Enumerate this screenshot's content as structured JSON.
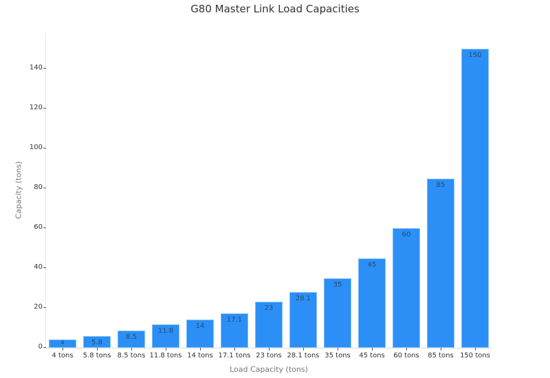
{
  "chart_data": {
    "type": "bar",
    "title": "G80 Master Link Load Capacities",
    "xlabel": "Load Capacity (tons)",
    "ylabel": "Capacity (tons)",
    "categories": [
      "4 tons",
      "5.8 tons",
      "8.5 tons",
      "11.8 tons",
      "14 tons",
      "17.1 tons",
      "23 tons",
      "28.1 tons",
      "35 tons",
      "45 tons",
      "60 tons",
      "85 tons",
      "150 tons"
    ],
    "values": [
      4,
      5.8,
      8.5,
      11.8,
      14,
      17.1,
      23,
      28.1,
      35,
      45,
      60,
      85,
      150
    ],
    "data_labels": [
      "4",
      "5.8",
      "8.5",
      "11.8",
      "14",
      "17.1",
      "23",
      "28.1",
      "35",
      "45",
      "60",
      "85",
      "150"
    ],
    "yticks": [
      0,
      20,
      40,
      60,
      80,
      100,
      120,
      140
    ],
    "ylim": [
      0,
      158
    ],
    "grid": false,
    "legend": null,
    "bar_color": "#2b8ff5"
  }
}
